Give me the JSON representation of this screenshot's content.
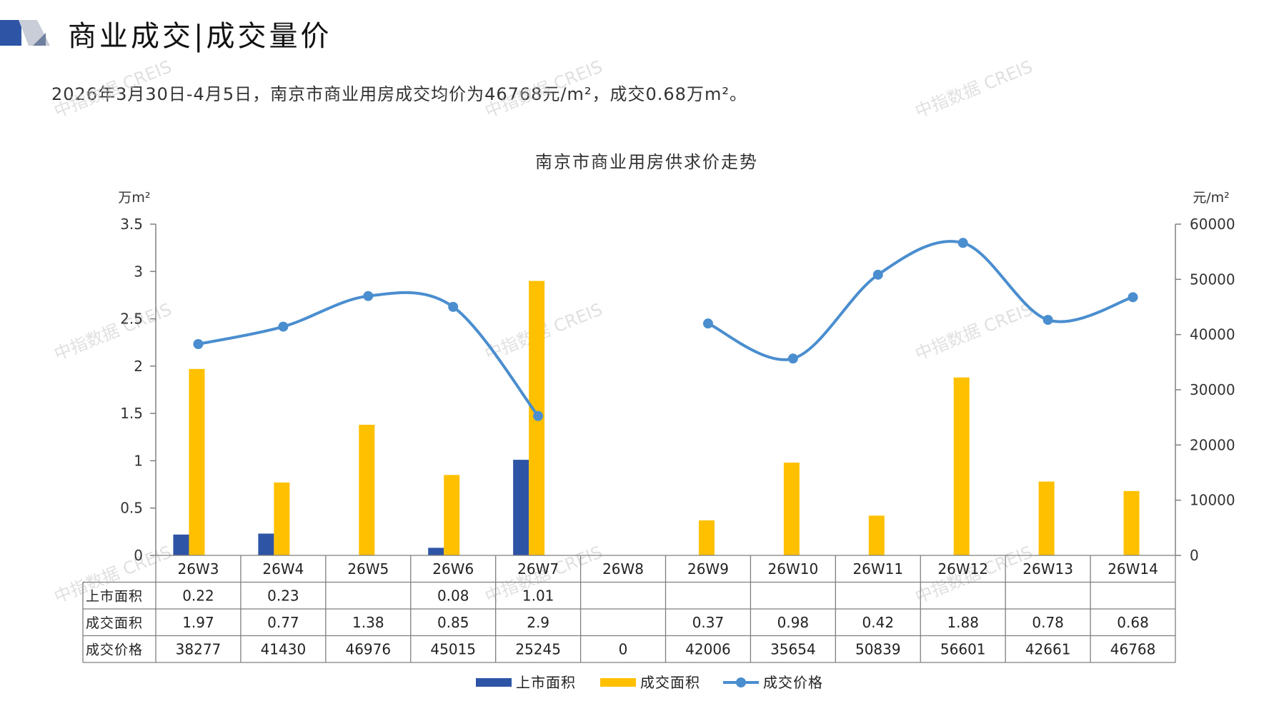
{
  "header": {
    "title": "商业成交|成交量价",
    "summary": "2026年3月30日-4月5日，南京市商业用房成交均价为46768元/m²，成交0.68万m²。"
  },
  "watermark": "中指数据 CREIS",
  "colors": {
    "supply": "#2E54A5",
    "deal_area": "#FFC000",
    "price": "#4A8ECF",
    "axis": "#808080"
  },
  "chart_data": {
    "type": "bar",
    "title": "南京市商业用房供求价走势",
    "ylabel_left": "万m²",
    "ylabel_right": "元/m²",
    "ylim_left": [
      0,
      3.5
    ],
    "yticks_left": [
      "0",
      "0.5",
      "1",
      "1.5",
      "2",
      "2.5",
      "3",
      "3.5"
    ],
    "ylim_right": [
      0,
      60000
    ],
    "yticks_right": [
      "0",
      "10000",
      "20000",
      "30000",
      "40000",
      "50000",
      "60000"
    ],
    "categories": [
      "26W3",
      "26W4",
      "26W5",
      "26W6",
      "26W7",
      "26W8",
      "26W9",
      "26W10",
      "26W11",
      "26W12",
      "26W13",
      "26W14"
    ],
    "legend_placement": "bottom",
    "grid": false,
    "series": [
      {
        "name": "上市面积",
        "type": "bar",
        "axis": "left",
        "values": [
          0.22,
          0.23,
          null,
          0.08,
          1.01,
          null,
          null,
          null,
          null,
          null,
          null,
          null
        ],
        "labels": [
          "0.22",
          "0.23",
          "",
          "0.08",
          "1.01",
          "",
          "",
          "",
          "",
          "",
          "",
          ""
        ]
      },
      {
        "name": "成交面积",
        "type": "bar",
        "axis": "left",
        "values": [
          1.97,
          0.77,
          1.38,
          0.85,
          2.9,
          null,
          0.37,
          0.98,
          0.42,
          1.88,
          0.78,
          0.68
        ],
        "labels": [
          "1.97",
          "0.77",
          "1.38",
          "0.85",
          "2.9",
          "",
          "0.37",
          "0.98",
          "0.42",
          "1.88",
          "0.78",
          "0.68"
        ]
      },
      {
        "name": "成交价格",
        "type": "line",
        "axis": "right",
        "values": [
          38277,
          41430,
          46976,
          45015,
          25245,
          0,
          42006,
          35654,
          50839,
          56601,
          42661,
          46768
        ],
        "labels": [
          "38277",
          "41430",
          "46976",
          "45015",
          "25245",
          "0",
          "42006",
          "35654",
          "50839",
          "56601",
          "42661",
          "46768"
        ]
      }
    ]
  }
}
